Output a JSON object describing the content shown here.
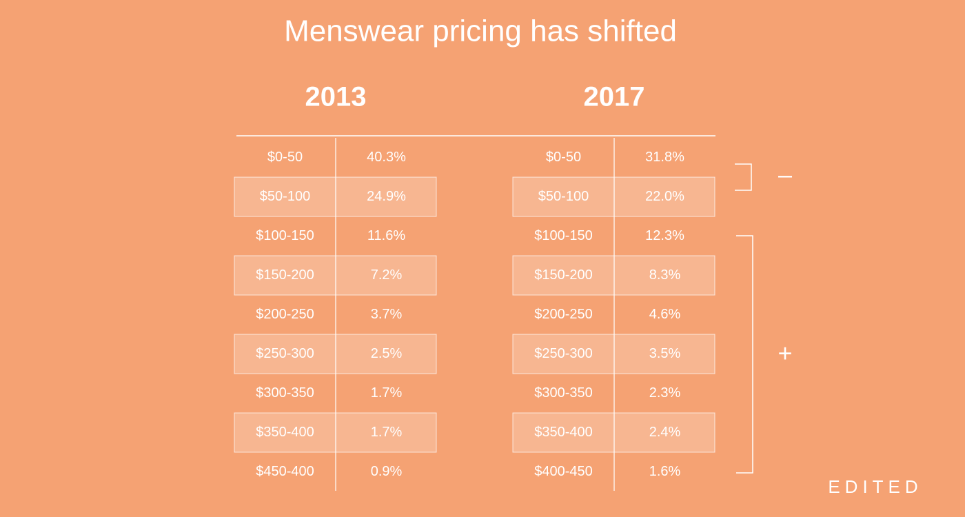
{
  "title": "Menswear pricing has shifted",
  "tables": [
    {
      "heading": "2013",
      "rows": [
        [
          "$0-50",
          "40.3%"
        ],
        [
          "$50-100",
          "24.9%"
        ],
        [
          "$100-150",
          "11.6%"
        ],
        [
          "$150-200",
          "7.2%"
        ],
        [
          "$200-250",
          "3.7%"
        ],
        [
          "$250-300",
          "2.5%"
        ],
        [
          "$300-350",
          "1.7%"
        ],
        [
          "$350-400",
          "1.7%"
        ],
        [
          "$450-400",
          "0.9%"
        ]
      ]
    },
    {
      "heading": "2017",
      "rows": [
        [
          "$0-50",
          "31.8%"
        ],
        [
          "$50-100",
          "22.0%"
        ],
        [
          "$100-150",
          "12.3%"
        ],
        [
          "$150-200",
          "8.3%"
        ],
        [
          "$200-250",
          "4.6%"
        ],
        [
          "$250-300",
          "3.5%"
        ],
        [
          "$300-350",
          "2.3%"
        ],
        [
          "$350-400",
          "2.4%"
        ],
        [
          "$400-450",
          "1.6%"
        ]
      ]
    }
  ],
  "brackets": [
    {
      "label": "–"
    },
    {
      "label": "+"
    }
  ],
  "brand": "EDITED"
}
